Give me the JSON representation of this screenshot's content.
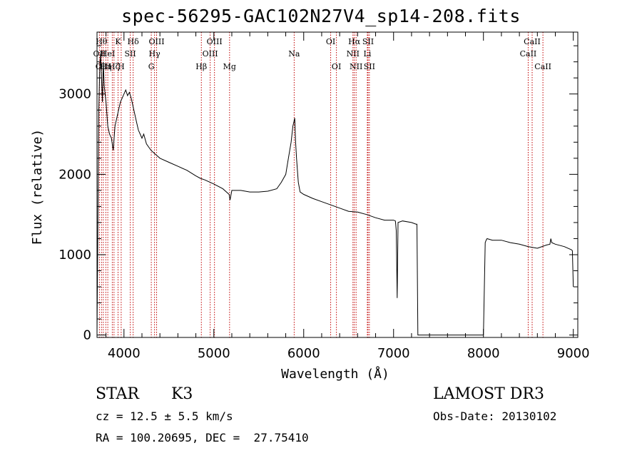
{
  "chart_data": {
    "type": "line",
    "title": "spec-56295-GAC102N27V4_sp14-208.fits",
    "xlabel": "Wavelength (Å)",
    "ylabel": "Flux (relative)",
    "xlim": [
      3700,
      9050
    ],
    "ylim": [
      -30,
      3770
    ],
    "xticks": [
      4000,
      5000,
      6000,
      7000,
      8000,
      9000
    ],
    "yticks": [
      0,
      1000,
      2000,
      3000
    ],
    "series": [
      {
        "name": "flux",
        "x": [
          3700,
          3710,
          3720,
          3730,
          3740,
          3750,
          3760,
          3770,
          3780,
          3800,
          3820,
          3840,
          3860,
          3880,
          3900,
          3920,
          3940,
          3960,
          3980,
          4000,
          4020,
          4040,
          4060,
          4080,
          4100,
          4120,
          4140,
          4160,
          4180,
          4200,
          4220,
          4250,
          4300,
          4350,
          4400,
          4500,
          4600,
          4700,
          4800,
          4850,
          4900,
          5000,
          5100,
          5170,
          5180,
          5200,
          5300,
          5400,
          5500,
          5600,
          5700,
          5750,
          5800,
          5830,
          5860,
          5880,
          5890,
          5900,
          5910,
          5920,
          5940,
          5960,
          6000,
          6100,
          6200,
          6300,
          6400,
          6500,
          6600,
          6700,
          6800,
          6900,
          7000,
          7020,
          7030,
          7040,
          7050,
          7100,
          7200,
          7250,
          7260,
          7270,
          7300,
          7500,
          7700,
          7900,
          8000,
          8020,
          8030,
          8040,
          8100,
          8200,
          8300,
          8400,
          8500,
          8600,
          8700,
          8740,
          8750,
          8760,
          8800,
          8900,
          8980,
          8990,
          9000
        ],
        "y": [
          0,
          1500,
          2800,
          3300,
          3500,
          3200,
          2900,
          3400,
          3100,
          2900,
          2600,
          2500,
          2450,
          2300,
          2600,
          2700,
          2800,
          2900,
          2950,
          3000,
          3050,
          2980,
          3020,
          2950,
          2850,
          2750,
          2650,
          2550,
          2500,
          2450,
          2500,
          2380,
          2300,
          2250,
          2200,
          2150,
          2100,
          2050,
          1980,
          1950,
          1930,
          1880,
          1820,
          1750,
          1680,
          1800,
          1800,
          1780,
          1780,
          1790,
          1820,
          1900,
          2000,
          2200,
          2400,
          2600,
          2650,
          2700,
          2400,
          2200,
          1900,
          1780,
          1750,
          1700,
          1660,
          1620,
          1580,
          1540,
          1530,
          1500,
          1460,
          1430,
          1430,
          1420,
          1300,
          460,
          1400,
          1420,
          1400,
          1380,
          1380,
          0,
          0,
          0,
          0,
          0,
          0,
          1150,
          1180,
          1200,
          1180,
          1180,
          1150,
          1130,
          1100,
          1080,
          1120,
          1130,
          1200,
          1150,
          1130,
          1100,
          1060,
          1050,
          600
        ]
      }
    ],
    "lines": [
      {
        "wl": 3727,
        "label": "OII",
        "row": 1
      },
      {
        "wl": 3750,
        "label": "Hθ",
        "row": 0
      },
      {
        "wl": 3770,
        "label": "OIII",
        "row": 2
      },
      {
        "wl": 3798,
        "label": "Hη",
        "row": 2
      },
      {
        "wl": 3820,
        "label": "HeI",
        "row": 1
      },
      {
        "wl": 3870,
        "label": "",
        "row": 1
      },
      {
        "wl": 3889,
        "label": "Hζ",
        "row": 2
      },
      {
        "wl": 3934,
        "label": "K",
        "row": 0
      },
      {
        "wl": 3969,
        "label": "H",
        "row": 2
      },
      {
        "wl": 4070,
        "label": "SII",
        "row": 1
      },
      {
        "wl": 4102,
        "label": "Hδ",
        "row": 0
      },
      {
        "wl": 4304,
        "label": "G",
        "row": 2
      },
      {
        "wl": 4340,
        "label": "Hγ",
        "row": 1
      },
      {
        "wl": 4363,
        "label": "OIII",
        "row": 0
      },
      {
        "wl": 4861,
        "label": "Hβ",
        "row": 2
      },
      {
        "wl": 4959,
        "label": "OIII",
        "row": 1
      },
      {
        "wl": 5007,
        "label": "OIII",
        "row": 0
      },
      {
        "wl": 5175,
        "label": "Mg",
        "row": 2
      },
      {
        "wl": 5894,
        "label": "Na",
        "row": 1
      },
      {
        "wl": 6300,
        "label": "OI",
        "row": 0
      },
      {
        "wl": 6364,
        "label": "OI",
        "row": 2
      },
      {
        "wl": 6548,
        "label": "NII",
        "row": 1
      },
      {
        "wl": 6563,
        "label": "Hα",
        "row": 0
      },
      {
        "wl": 6583,
        "label": "NII",
        "row": 2
      },
      {
        "wl": 6708,
        "label": "Li",
        "row": 1
      },
      {
        "wl": 6716,
        "label": "SII",
        "row": 0
      },
      {
        "wl": 6731,
        "label": "SII",
        "row": 2
      },
      {
        "wl": 8498,
        "label": "CaII",
        "row": 1
      },
      {
        "wl": 8542,
        "label": "CaII",
        "row": 0
      },
      {
        "wl": 8662,
        "label": "CaII",
        "row": 2
      }
    ]
  },
  "info": {
    "class_label": "STAR",
    "subclass": "K3",
    "survey": "LAMOST DR3",
    "cz": "cz = 12.5 ± 5.5 km/s",
    "obs_date": "Obs-Date: 20130102",
    "radec": "RA = 100.20695, DEC =  27.75410"
  }
}
